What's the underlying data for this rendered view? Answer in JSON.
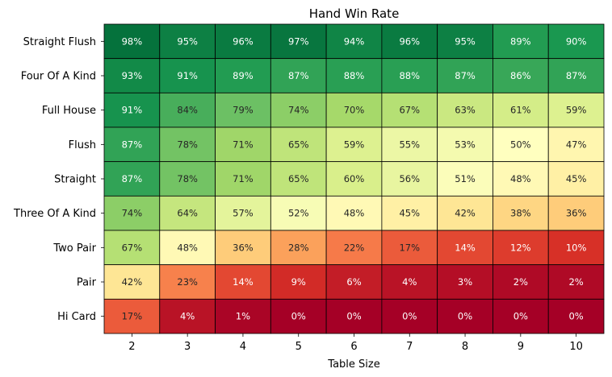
{
  "chart_data": {
    "type": "heatmap",
    "title": "Hand Win Rate",
    "xlabel": "Table Size",
    "ylabel": "",
    "colormap": "RdYlGn",
    "value_range": [
      0,
      100
    ],
    "x": [
      "2",
      "3",
      "4",
      "5",
      "6",
      "7",
      "8",
      "9",
      "10"
    ],
    "y": [
      "Straight Flush",
      "Four Of A Kind",
      "Full House",
      "Flush",
      "Straight",
      "Three Of A Kind",
      "Two Pair",
      "Pair",
      "Hi Card"
    ],
    "values": [
      [
        98,
        95,
        96,
        97,
        94,
        96,
        95,
        89,
        90
      ],
      [
        93,
        91,
        89,
        87,
        88,
        88,
        87,
        86,
        87
      ],
      [
        91,
        84,
        79,
        74,
        70,
        67,
        63,
        61,
        59
      ],
      [
        87,
        78,
        71,
        65,
        59,
        55,
        53,
        50,
        47
      ],
      [
        87,
        78,
        71,
        65,
        60,
        56,
        51,
        48,
        45
      ],
      [
        74,
        64,
        57,
        52,
        48,
        45,
        42,
        38,
        36
      ],
      [
        67,
        48,
        36,
        28,
        22,
        17,
        14,
        12,
        10
      ],
      [
        42,
        23,
        14,
        9,
        6,
        4,
        3,
        2,
        2
      ],
      [
        17,
        4,
        1,
        0,
        0,
        0,
        0,
        0,
        0
      ]
    ],
    "labels": [
      [
        "98%",
        "95%",
        "96%",
        "97%",
        "94%",
        "96%",
        "95%",
        "89%",
        "90%"
      ],
      [
        "93%",
        "91%",
        "89%",
        "87%",
        "88%",
        "88%",
        "87%",
        "86%",
        "87%"
      ],
      [
        "91%",
        "84%",
        "79%",
        "74%",
        "70%",
        "67%",
        "63%",
        "61%",
        "59%"
      ],
      [
        "87%",
        "78%",
        "71%",
        "65%",
        "59%",
        "55%",
        "53%",
        "50%",
        "47%"
      ],
      [
        "87%",
        "78%",
        "71%",
        "65%",
        "60%",
        "56%",
        "51%",
        "48%",
        "45%"
      ],
      [
        "74%",
        "64%",
        "57%",
        "52%",
        "48%",
        "45%",
        "42%",
        "38%",
        "36%"
      ],
      [
        "67%",
        "48%",
        "36%",
        "28%",
        "22%",
        "17%",
        "14%",
        "12%",
        "10%"
      ],
      [
        "42%",
        "23%",
        "14%",
        "9%",
        "6%",
        "4%",
        "3%",
        "2%",
        "2%"
      ],
      [
        "17%",
        "4%",
        "1%",
        "0%",
        "0%",
        "0%",
        "0%",
        "0%",
        "0%"
      ]
    ],
    "grid": true,
    "legend": "none"
  }
}
